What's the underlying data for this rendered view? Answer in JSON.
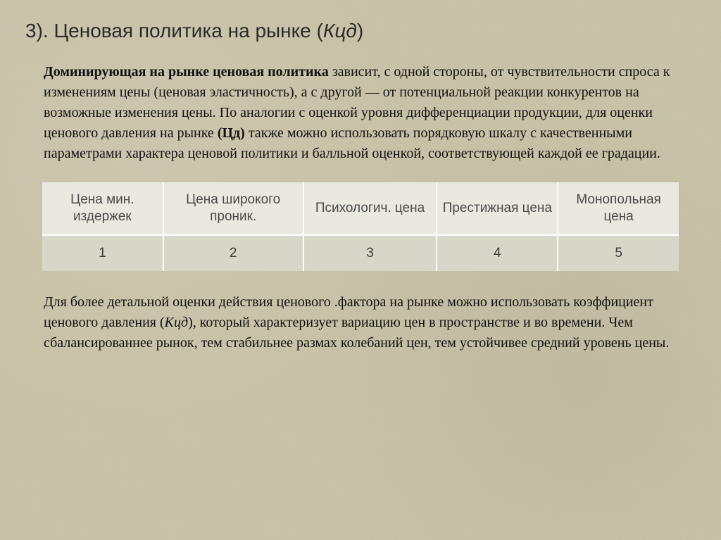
{
  "title": {
    "prefix": "3). Ценовая политика на рынке (",
    "italic": "Кцд",
    "suffix": ")"
  },
  "para1": {
    "bold_lead": "Доминирующая на рынке ценовая политика",
    "text1": " зависит, с одной стороны, от чувствительности спроса к изменениям цены (ценовая эластичность), а с другой — от потенциальной реакции конкурентов на возможные изменения цены. По аналогии с оценкой уровня дифференциации продукции, для оценки ценового давления на рынке ",
    "bold_cd": "(Цд)",
    "text2": " также можно использовать порядковую шкалу с качественными параметрами характера ценовой политики и балльной оценкой, соответствующей каждой ее градации."
  },
  "table": {
    "headers": [
      "Цена мин. издержек",
      "Цена широкого проник.",
      "Психологич. цена",
      "Престижная цена",
      "Монопольная цена"
    ],
    "values": [
      "1",
      "2",
      "3",
      "4",
      "5"
    ],
    "col_widths": [
      "19%",
      "22%",
      "21%",
      "19%",
      "19%"
    ],
    "header_bg": "#e9e9df",
    "value_bg": "#d7d7c9",
    "border_color": "#ffffff",
    "text_color": "#3b3b3b",
    "fontsize": 19
  },
  "para2": {
    "text1": "Для более детальной оценки действия ценового .фактора на рынке можно использовать коэффициент ценового давления (",
    "italic_k": "Кцд",
    "text2": "), который характеризует вариацию цен в пространстве и во времени. Чем сбалансированнее рынок, тем стабильнее размах колебаний цен, тем устойчивее средний уровень цены."
  },
  "page": {
    "background_color": "#c8c2a8",
    "body_font": "Times New Roman",
    "title_font": "Segoe UI",
    "title_fontsize": 28,
    "body_fontsize": 20
  }
}
